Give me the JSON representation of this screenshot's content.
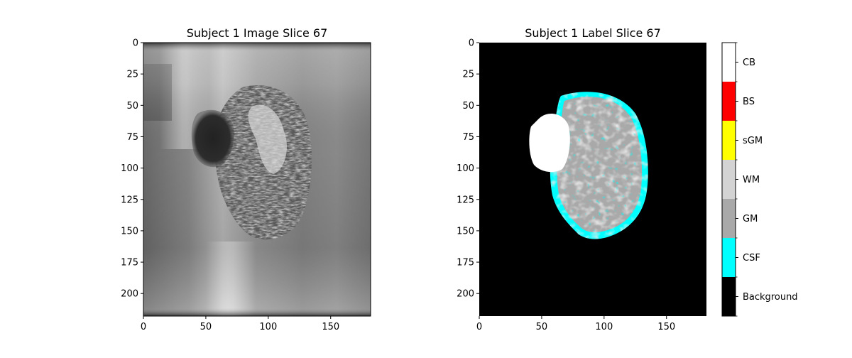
{
  "figure": {
    "left_panel": {
      "title": "Subject 1 Image Slice 67",
      "x_ticks": [
        "0",
        "50",
        "100",
        "150"
      ],
      "y_ticks": [
        "0",
        "25",
        "50",
        "75",
        "100",
        "125",
        "150",
        "175",
        "200"
      ],
      "x_tick_values": [
        0,
        50,
        100,
        150
      ],
      "y_tick_values": [
        0,
        25,
        50,
        75,
        100,
        125,
        150,
        175,
        200
      ],
      "xlim": [
        0,
        182
      ],
      "ylim": [
        218,
        0
      ]
    },
    "right_panel": {
      "title": "Subject 1 Label Slice 67",
      "x_ticks": [
        "0",
        "50",
        "100",
        "150"
      ],
      "y_ticks": [
        "0",
        "25",
        "50",
        "75",
        "100",
        "125",
        "150",
        "175",
        "200"
      ],
      "x_tick_values": [
        0,
        50,
        100,
        150
      ],
      "y_tick_values": [
        0,
        25,
        50,
        75,
        100,
        125,
        150,
        175,
        200
      ],
      "xlim": [
        0,
        182
      ],
      "ylim": [
        218,
        0
      ]
    },
    "colorbar": {
      "labels": [
        "Background",
        "CSF",
        "GM",
        "WM",
        "sGM",
        "BS",
        "CB"
      ],
      "colors": [
        "#000000",
        "#00ffff",
        "#a9a9a9",
        "#d3d3d3",
        "#ffff00",
        "#ff0000",
        "#ffffff"
      ]
    }
  }
}
